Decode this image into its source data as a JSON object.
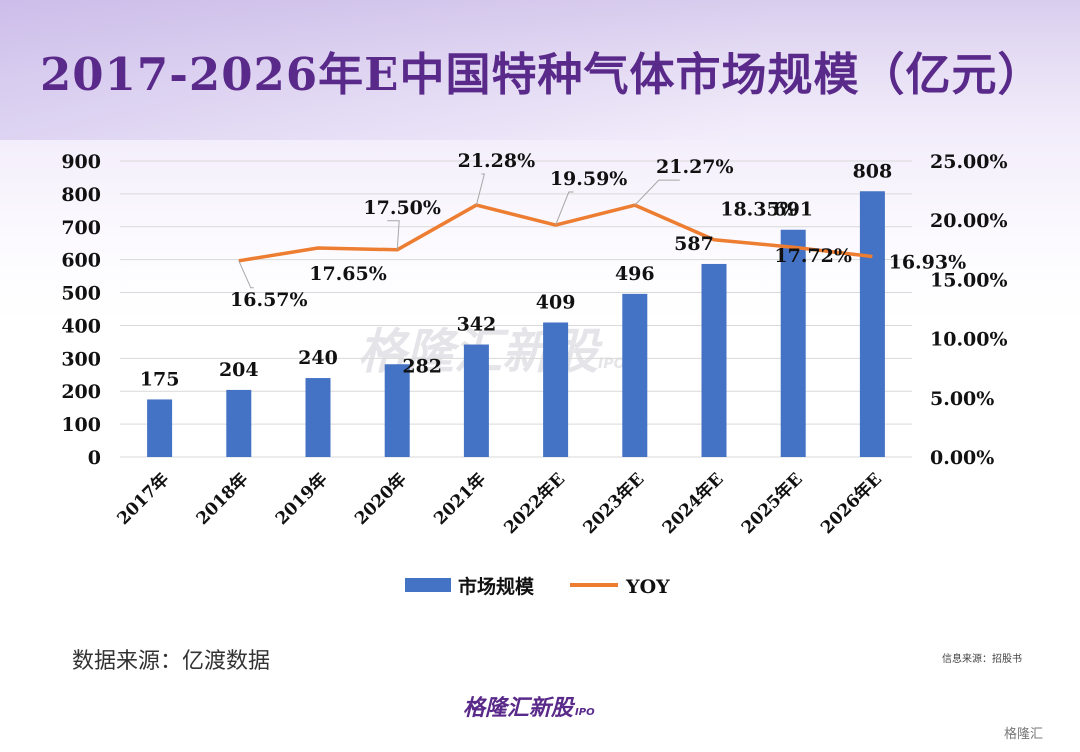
{
  "title": "2017-2026年E中国特种气体市场规模（亿元）",
  "footer": {
    "source": "数据来源：亿渡数据",
    "info_source": "信息来源：招股书",
    "logo_text": "格隆汇新股",
    "logo_suffix": "IPO",
    "corner_badge": "格隆汇",
    "watermark": "格隆汇新股",
    "watermark_suffix": "IPO"
  },
  "chart_data": {
    "type": "bar",
    "categories": [
      "2017年",
      "2018年",
      "2019年",
      "2020年",
      "2021年",
      "2022年E",
      "2023年E",
      "2024年E",
      "2025年E",
      "2026年E"
    ],
    "series": [
      {
        "name": "市场规模",
        "type": "bar",
        "axis": "left",
        "values": [
          175,
          204,
          240,
          282,
          342,
          409,
          496,
          587,
          691,
          808
        ],
        "labels": [
          "175",
          "204",
          "240",
          "282",
          "342",
          "409",
          "496",
          "587",
          "691",
          "808"
        ]
      },
      {
        "name": "YOY",
        "type": "line",
        "axis": "right",
        "values": [
          null,
          16.57,
          17.65,
          17.5,
          21.28,
          19.59,
          21.27,
          18.35,
          17.72,
          16.93
        ],
        "labels": [
          "",
          "16.57%",
          "17.65%",
          "17.50%",
          "21.28%",
          "19.59%",
          "21.27%",
          "18.35%",
          "17.72%",
          "16.93%"
        ]
      }
    ],
    "ylim": [
      0,
      900
    ],
    "yticks": [
      "0",
      "100",
      "200",
      "300",
      "400",
      "500",
      "600",
      "700",
      "800",
      "900"
    ],
    "y2lim": [
      0,
      25
    ],
    "y2ticks": [
      "0.00%",
      "5.00%",
      "10.00%",
      "15.00%",
      "20.00%",
      "25.00%"
    ],
    "grid": true,
    "legend_position": "bottom",
    "colors": {
      "bar": "#4472c4",
      "line": "#ed7d31"
    }
  }
}
